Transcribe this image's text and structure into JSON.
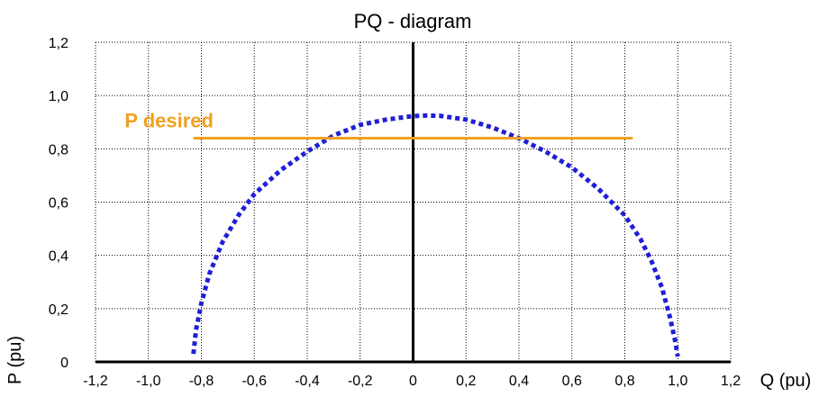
{
  "chart_data": {
    "type": "line",
    "title": "PQ - diagram",
    "xlabel": "Q (pu)",
    "ylabel": "P (pu)",
    "xlim": [
      -1.2,
      1.2
    ],
    "ylim": [
      0,
      1.2
    ],
    "x_step": 0.2,
    "y_step": 0.2,
    "grid": true,
    "x_tick_labels": [
      "-1,2",
      "-1,0",
      "-0,8",
      "-0,6",
      "-0,4",
      "-0,2",
      "0",
      "0,2",
      "0,4",
      "0,6",
      "0,8",
      "1,0",
      "1,2"
    ],
    "y_tick_labels": [
      "0",
      "0,2",
      "0,4",
      "0,6",
      "0,8",
      "1,0",
      "1,2"
    ],
    "series": [
      {
        "name": "",
        "style": "dotted",
        "color": "#1f1fd6",
        "x": [
          -0.83,
          -0.82,
          -0.8,
          -0.77,
          -0.72,
          -0.66,
          -0.6,
          -0.5,
          -0.4,
          -0.3,
          -0.2,
          -0.1,
          0.0,
          0.05,
          0.1,
          0.2,
          0.3,
          0.4,
          0.5,
          0.6,
          0.7,
          0.8,
          0.86,
          0.9,
          0.94,
          0.97,
          0.99,
          1.0
        ],
        "y": [
          0.03,
          0.12,
          0.22,
          0.33,
          0.45,
          0.55,
          0.63,
          0.72,
          0.79,
          0.85,
          0.89,
          0.91,
          0.923,
          0.925,
          0.924,
          0.91,
          0.88,
          0.84,
          0.79,
          0.73,
          0.65,
          0.55,
          0.46,
          0.38,
          0.28,
          0.17,
          0.08,
          0.02
        ]
      }
    ],
    "annotations": [
      {
        "label": "P desired",
        "color": "#f0a020",
        "y": 0.84,
        "x_start": -0.83,
        "x_end": 0.83
      }
    ],
    "axis_line_x": 0
  }
}
